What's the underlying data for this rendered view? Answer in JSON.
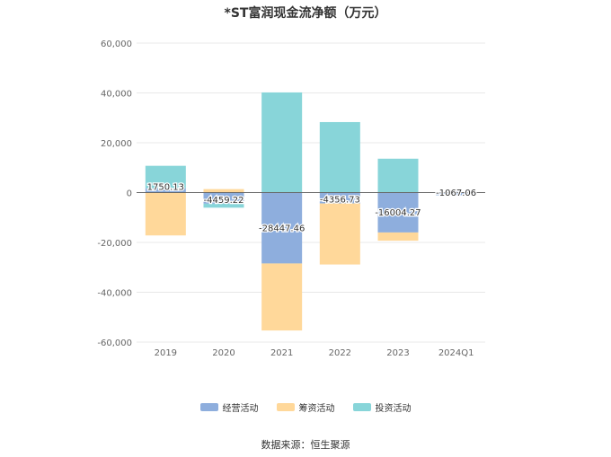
{
  "chart_data": {
    "type": "bar",
    "stacked": true,
    "title": "*ST富润现金流净额（万元）",
    "categories": [
      "2019",
      "2020",
      "2021",
      "2022",
      "2023",
      "2024Q1"
    ],
    "series": [
      {
        "name": "经营活动",
        "color": "#8eaedd",
        "values": [
          1750.13,
          -4459.22,
          -28447.46,
          -4356.73,
          -16004.27,
          -1067.06
        ]
      },
      {
        "name": "筹资活动",
        "color": "#ffd89a",
        "values": [
          -17200,
          1400,
          -26900,
          -24500,
          -3300,
          0
        ]
      },
      {
        "name": "投资活动",
        "color": "#88d5d9",
        "values": [
          9000,
          -1600,
          40200,
          28300,
          13600,
          0
        ]
      }
    ],
    "data_labels": [
      "1750.13",
      "-4459.22",
      "-28447.46",
      "-4356.73",
      "-16004.27",
      "-1067.06"
    ],
    "y_ticks": [
      "60,000",
      "40,000",
      "20,000",
      "0",
      "-20,000",
      "-40,000",
      "-60,000"
    ],
    "ylim": [
      -60000,
      60000
    ],
    "grid": true,
    "legend_position": "bottom"
  },
  "source": "数据来源：恒生聚源"
}
